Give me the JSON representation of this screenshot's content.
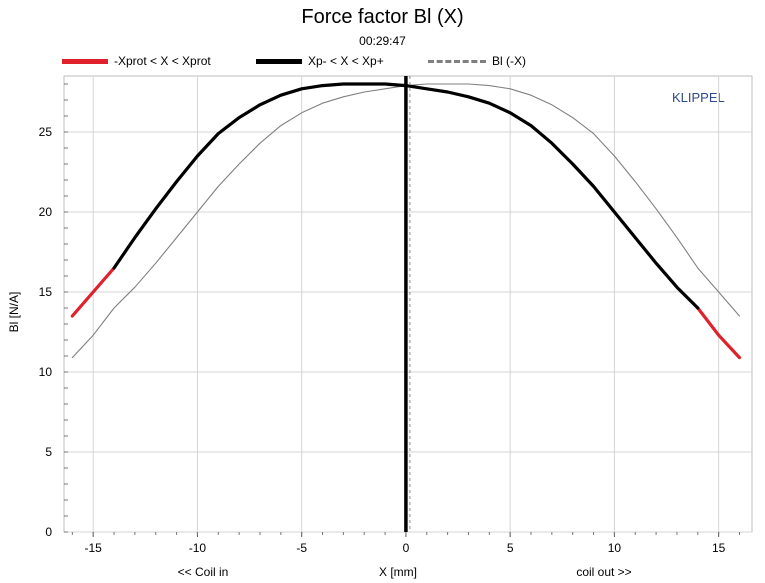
{
  "chart_data": {
    "type": "line",
    "title": "Force factor Bl (X)",
    "subtitle": "00:29:47",
    "brand": "KLIPPEL",
    "xlabel": "X [mm]",
    "xlabel_left": "<< Coil in",
    "xlabel_right": "coil out >>",
    "ylabel": "Bl [N/A]",
    "xlim": [
      -16.4,
      16.6
    ],
    "ylim": [
      0,
      28.5
    ],
    "xticks": [
      -15,
      -10,
      -5,
      0,
      5,
      10,
      15
    ],
    "yticks": [
      0,
      5,
      10,
      15,
      20,
      25
    ],
    "grid": true,
    "legend_position": "top",
    "colors": {
      "protected": "#e0202a",
      "operating": "#000000",
      "mirrored": "#808080"
    },
    "series": [
      {
        "name": "-Xprot < X < Xprot",
        "style": "red",
        "x": [
          -16,
          -15,
          -14
        ],
        "y": [
          13.5,
          15.0,
          16.5
        ]
      },
      {
        "name": "Xp- < X < Xp+",
        "style": "black",
        "x": [
          -14,
          -13,
          -12,
          -11,
          -10,
          -9,
          -8,
          -7,
          -6,
          -5,
          -4,
          -3,
          -2,
          -1,
          0,
          1,
          2,
          3,
          4,
          5,
          6,
          7,
          8,
          9,
          10,
          11,
          12,
          13,
          14
        ],
        "y": [
          16.5,
          18.4,
          20.2,
          21.9,
          23.5,
          24.9,
          25.9,
          26.7,
          27.3,
          27.7,
          27.9,
          28.0,
          28.0,
          28.0,
          27.9,
          27.7,
          27.5,
          27.2,
          26.8,
          26.2,
          25.4,
          24.3,
          23.0,
          21.6,
          20.0,
          18.4,
          16.8,
          15.3,
          14.0
        ]
      },
      {
        "name": "",
        "style": "red",
        "x": [
          14,
          15,
          16
        ],
        "y": [
          14.0,
          12.3,
          10.9
        ]
      },
      {
        "name": "Bl (-X)",
        "style": "gray",
        "x": [
          -16,
          -15,
          -14,
          -13,
          -12,
          -11,
          -10,
          -9,
          -8,
          -7,
          -6,
          -5,
          -4,
          -3,
          -2,
          -1,
          0,
          1,
          2,
          3,
          4,
          5,
          6,
          7,
          8,
          9,
          10,
          11,
          12,
          13,
          14,
          15,
          16
        ],
        "y": [
          10.9,
          12.3,
          14.0,
          15.3,
          16.8,
          18.4,
          20.0,
          21.6,
          23.0,
          24.3,
          25.4,
          26.2,
          26.8,
          27.2,
          27.5,
          27.7,
          27.9,
          28.0,
          28.0,
          28.0,
          27.9,
          27.7,
          27.3,
          26.7,
          25.9,
          24.9,
          23.5,
          21.9,
          20.2,
          18.4,
          16.5,
          15.0,
          13.5
        ]
      }
    ],
    "vertical_markers": [
      0
    ]
  }
}
